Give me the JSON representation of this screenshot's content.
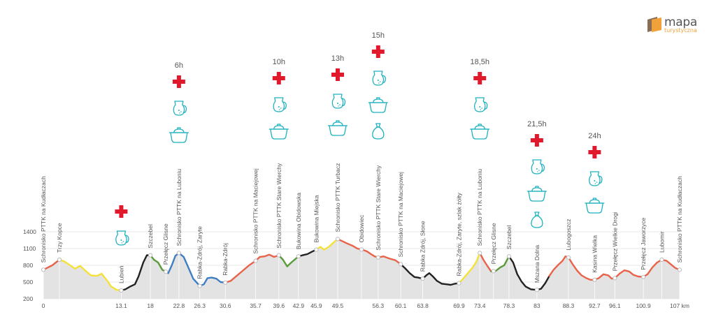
{
  "brand": {
    "name": "mapa",
    "sub": "turystyczna"
  },
  "chart_data": {
    "type": "area",
    "title": "",
    "xlabel": "",
    "ylabel": "",
    "x_unit": "km",
    "xlim": [
      0,
      107
    ],
    "ylim": [
      200,
      1400
    ],
    "y_ticks": [
      200,
      500,
      800,
      1100,
      1400
    ],
    "x_ticks": [
      {
        "v": 0,
        "label": "0"
      },
      {
        "v": 13.1,
        "label": "13.1"
      },
      {
        "v": 18,
        "label": "18"
      },
      {
        "v": 22.8,
        "label": "22.8"
      },
      {
        "v": 26.3,
        "label": "26.3"
      },
      {
        "v": 30.6,
        "label": "30.6"
      },
      {
        "v": 35.7,
        "label": "35.7"
      },
      {
        "v": 39.6,
        "label": "39.6"
      },
      {
        "v": 42.9,
        "label": "42.9"
      },
      {
        "v": 45.9,
        "label": "45.9"
      },
      {
        "v": 49.5,
        "label": "49.5"
      },
      {
        "v": 56.3,
        "label": "56.3"
      },
      {
        "v": 60.1,
        "label": "60.1"
      },
      {
        "v": 63.8,
        "label": "63.8"
      },
      {
        "v": 69.9,
        "label": "69.9"
      },
      {
        "v": 73.4,
        "label": "73.4"
      },
      {
        "v": 78.3,
        "label": "78.3"
      },
      {
        "v": 83,
        "label": "83"
      },
      {
        "v": 88.3,
        "label": "88.3"
      },
      {
        "v": 92.7,
        "label": "92.7"
      },
      {
        "v": 96.1,
        "label": "96.1"
      },
      {
        "v": 100.9,
        "label": "100.9"
      },
      {
        "v": 107,
        "label": "107 km"
      }
    ],
    "profile": [
      [
        0,
        720
      ],
      [
        1.5,
        800
      ],
      [
        2.7,
        900
      ],
      [
        3.5,
        870
      ],
      [
        4.5,
        800
      ],
      [
        5.3,
        740
      ],
      [
        6.2,
        790
      ],
      [
        7.1,
        700
      ],
      [
        8.0,
        620
      ],
      [
        9.0,
        610
      ],
      [
        9.8,
        650
      ],
      [
        10.7,
        530
      ],
      [
        11.4,
        420
      ],
      [
        12.3,
        360
      ],
      [
        13.1,
        350
      ],
      [
        13.8,
        370
      ],
      [
        14.6,
        420
      ],
      [
        15.4,
        460
      ],
      [
        16.0,
        600
      ],
      [
        16.8,
        850
      ],
      [
        17.4,
        980
      ],
      [
        18,
        980
      ],
      [
        18.6,
        900
      ],
      [
        19.3,
        850
      ],
      [
        20.0,
        720
      ],
      [
        21.0,
        660
      ],
      [
        21.6,
        800
      ],
      [
        22.2,
        970
      ],
      [
        22.8,
        1020
      ],
      [
        23.6,
        950
      ],
      [
        24.3,
        780
      ],
      [
        25.2,
        560
      ],
      [
        26.3,
        430
      ],
      [
        27.0,
        460
      ],
      [
        27.6,
        570
      ],
      [
        28.3,
        580
      ],
      [
        29.1,
        560
      ],
      [
        29.8,
        500
      ],
      [
        30.6,
        490
      ],
      [
        31.5,
        520
      ],
      [
        32.5,
        610
      ],
      [
        33.5,
        700
      ],
      [
        34.6,
        800
      ],
      [
        35.7,
        880
      ],
      [
        36.4,
        950
      ],
      [
        37.2,
        960
      ],
      [
        38.0,
        990
      ],
      [
        38.8,
        950
      ],
      [
        39.6,
        980
      ],
      [
        40.3,
        900
      ],
      [
        41.0,
        780
      ],
      [
        41.7,
        850
      ],
      [
        42.9,
        960
      ],
      [
        43.6,
        980
      ],
      [
        44.4,
        1000
      ],
      [
        45.1,
        1040
      ],
      [
        45.9,
        1080
      ],
      [
        46.6,
        1130
      ],
      [
        47.2,
        1080
      ],
      [
        48.0,
        1130
      ],
      [
        48.7,
        1200
      ],
      [
        49.5,
        1270
      ],
      [
        50.3,
        1230
      ],
      [
        51.1,
        1190
      ],
      [
        52.0,
        1150
      ],
      [
        52.8,
        1100
      ],
      [
        53.6,
        1080
      ],
      [
        54.4,
        1050
      ],
      [
        55.1,
        1000
      ],
      [
        55.7,
        960
      ],
      [
        56.3,
        940
      ],
      [
        57.2,
        960
      ],
      [
        58.2,
        920
      ],
      [
        59.2,
        890
      ],
      [
        60.1,
        820
      ],
      [
        60.8,
        750
      ],
      [
        61.6,
        660
      ],
      [
        62.4,
        590
      ],
      [
        63.0,
        580
      ],
      [
        63.8,
        560
      ],
      [
        64.4,
        620
      ],
      [
        64.9,
        660
      ],
      [
        65.5,
        600
      ],
      [
        66.2,
        520
      ],
      [
        67.0,
        470
      ],
      [
        67.8,
        460
      ],
      [
        68.5,
        450
      ],
      [
        69.2,
        470
      ],
      [
        69.9,
        480
      ],
      [
        70.6,
        560
      ],
      [
        71.4,
        660
      ],
      [
        72.2,
        760
      ],
      [
        72.8,
        860
      ],
      [
        73.4,
        1020
      ],
      [
        74.0,
        900
      ],
      [
        74.6,
        800
      ],
      [
        75.3,
        690
      ],
      [
        76.1,
        700
      ],
      [
        76.8,
        760
      ],
      [
        77.5,
        800
      ],
      [
        78.3,
        960
      ],
      [
        79.0,
        850
      ],
      [
        79.7,
        640
      ],
      [
        80.4,
        510
      ],
      [
        81.1,
        420
      ],
      [
        82.0,
        370
      ],
      [
        83,
        360
      ],
      [
        83.7,
        380
      ],
      [
        84.4,
        480
      ],
      [
        85.1,
        610
      ],
      [
        85.8,
        720
      ],
      [
        86.5,
        800
      ],
      [
        87.3,
        880
      ],
      [
        87.8,
        960
      ],
      [
        88.3,
        940
      ],
      [
        89.0,
        820
      ],
      [
        89.8,
        700
      ],
      [
        90.5,
        620
      ],
      [
        91.3,
        570
      ],
      [
        92.0,
        540
      ],
      [
        92.7,
        540
      ],
      [
        93.4,
        570
      ],
      [
        94.2,
        640
      ],
      [
        95.0,
        620
      ],
      [
        95.6,
        560
      ],
      [
        96.1,
        570
      ],
      [
        96.9,
        650
      ],
      [
        97.7,
        710
      ],
      [
        98.5,
        690
      ],
      [
        99.2,
        630
      ],
      [
        100.0,
        600
      ],
      [
        100.9,
        590
      ],
      [
        101.6,
        640
      ],
      [
        102.4,
        760
      ],
      [
        103.2,
        850
      ],
      [
        104.0,
        900
      ],
      [
        104.8,
        880
      ],
      [
        105.6,
        810
      ],
      [
        106.3,
        750
      ],
      [
        107,
        720
      ]
    ],
    "segments": [
      {
        "from": 0,
        "to": 2.7,
        "color": "#e8634a"
      },
      {
        "from": 2.7,
        "to": 13.1,
        "color": "#f4e23a"
      },
      {
        "from": 13.1,
        "to": 18,
        "color": "#222222"
      },
      {
        "from": 18,
        "to": 21.0,
        "color": "#5a9c3c"
      },
      {
        "from": 21.0,
        "to": 26.3,
        "color": "#3e7fc3"
      },
      {
        "from": 26.3,
        "to": 30.6,
        "color": "#3e7fc3"
      },
      {
        "from": 30.6,
        "to": 39.6,
        "color": "#e8634a"
      },
      {
        "from": 39.6,
        "to": 42.9,
        "color": "#5a9c3c"
      },
      {
        "from": 42.9,
        "to": 45.9,
        "color": "#222222"
      },
      {
        "from": 45.9,
        "to": 49.5,
        "color": "#f4e23a"
      },
      {
        "from": 49.5,
        "to": 60.1,
        "color": "#e8634a"
      },
      {
        "from": 60.1,
        "to": 67.0,
        "color": "#222222"
      },
      {
        "from": 67.0,
        "to": 69.9,
        "color": "#222222"
      },
      {
        "from": 69.9,
        "to": 73.4,
        "color": "#f4e23a"
      },
      {
        "from": 73.4,
        "to": 75.3,
        "color": "#e8634a"
      },
      {
        "from": 75.3,
        "to": 78.3,
        "color": "#5a9c3c"
      },
      {
        "from": 78.3,
        "to": 85.1,
        "color": "#222222"
      },
      {
        "from": 85.1,
        "to": 88.3,
        "color": "#e8634a"
      },
      {
        "from": 88.3,
        "to": 107,
        "color": "#e8634a"
      }
    ],
    "waypoints": [
      {
        "km": 0,
        "label": "Schronisko PTTK na Kudłaczach"
      },
      {
        "km": 2.7,
        "label": "Trzy Kopce"
      },
      {
        "km": 13.1,
        "label": "Lubień"
      },
      {
        "km": 18,
        "label": "Szczebel"
      },
      {
        "km": 20.6,
        "label": "Przełęcz Glisne"
      },
      {
        "km": 22.8,
        "label": "Schronisko PTTK na Luboniu"
      },
      {
        "km": 26.3,
        "label": "Rabka-Zdrój, Zaryte"
      },
      {
        "km": 30.6,
        "label": "Rabka-Zdrój"
      },
      {
        "km": 35.7,
        "label": "Schronisko PTTK na Maciejowej"
      },
      {
        "km": 39.6,
        "label": "Schronisko PTTK Stare Wierchy"
      },
      {
        "km": 42.9,
        "label": "Bukowina Obidowska"
      },
      {
        "km": 45.9,
        "label": "Bukowina Miejska"
      },
      {
        "km": 49.5,
        "label": "Schronisko PTTK Turbacz"
      },
      {
        "km": 53.5,
        "label": "Obidowiec"
      },
      {
        "km": 56.3,
        "label": "Schronisko PTTK Stare Wierchy"
      },
      {
        "km": 60.1,
        "label": "Schronisko PTTK na Maciejowej"
      },
      {
        "km": 63.8,
        "label": "Rabka Zdrój, Słone"
      },
      {
        "km": 69.9,
        "label": "Rabka-Zdrój, Zaryte, szlak żółty"
      },
      {
        "km": 73.4,
        "label": "Schronisko PTTK na Luboniu"
      },
      {
        "km": 75.7,
        "label": "Przełęcz Glisne"
      },
      {
        "km": 78.3,
        "label": "Szczebel"
      },
      {
        "km": 83,
        "label": "Mszana Dolna"
      },
      {
        "km": 88.3,
        "label": "Lubogoszcz"
      },
      {
        "km": 92.7,
        "label": "Kasina Wielka"
      },
      {
        "km": 96.1,
        "label": "Przełęcz Wielkie Drogi"
      },
      {
        "km": 100.9,
        "label": "Przełęcz Jaworzyce"
      },
      {
        "km": 104.0,
        "label": "Lubomir"
      },
      {
        "km": 107,
        "label": "Schronisko PTTK na Kudłaczach"
      }
    ],
    "stops": [
      {
        "km": 13.1,
        "time": "",
        "icons": [
          "first-aid",
          "water",
          ""
        ]
      },
      {
        "km": 22.8,
        "time": "6h",
        "icons": [
          "first-aid",
          "water",
          "food"
        ]
      },
      {
        "km": 39.6,
        "time": "10h",
        "icons": [
          "first-aid",
          "water",
          "food"
        ]
      },
      {
        "km": 49.5,
        "time": "13h",
        "icons": [
          "first-aid",
          "water",
          "food"
        ]
      },
      {
        "km": 56.3,
        "time": "15h",
        "icons": [
          "first-aid",
          "water",
          "food",
          "supplies"
        ]
      },
      {
        "km": 73.4,
        "time": "18,5h",
        "icons": [
          "first-aid",
          "water",
          "food"
        ]
      },
      {
        "km": 83,
        "time": "21,5h",
        "icons": [
          "first-aid",
          "water",
          "food",
          "supplies"
        ]
      },
      {
        "km": 92.7,
        "time": "24h",
        "icons": [
          "first-aid",
          "water",
          "food"
        ]
      }
    ],
    "colors": {
      "fill": "#e3e3e3",
      "grid": "#e8e8e8",
      "first_aid": "#e0192d",
      "icon": "#1fb2c0",
      "text": "#555555",
      "marker": "#bbbbbb"
    }
  }
}
